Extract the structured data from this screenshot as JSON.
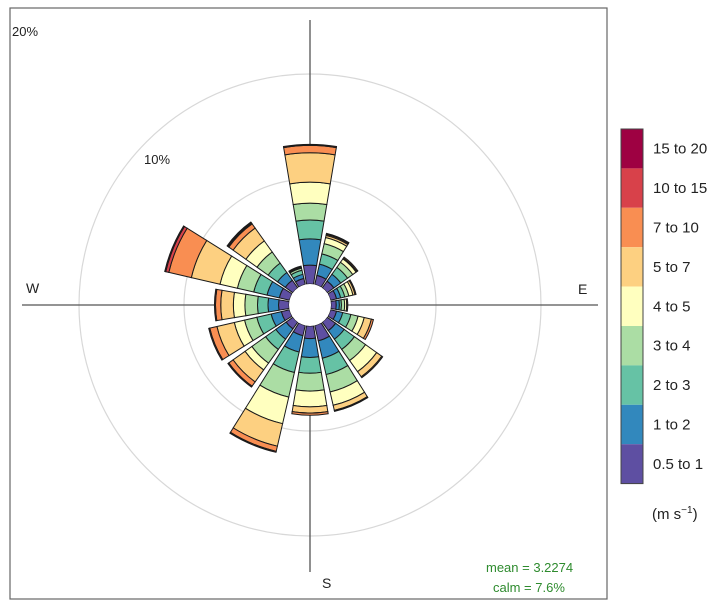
{
  "chart_data": {
    "type": "windrose",
    "title": "",
    "directions": [
      "N",
      "NNE",
      "NE",
      "ENE",
      "E",
      "ESE",
      "SE",
      "SSE",
      "S",
      "SSW",
      "SW",
      "WSW",
      "W",
      "WNW",
      "NW",
      "NNW"
    ],
    "direction_angles_deg": [
      0,
      22.5,
      45,
      67.5,
      90,
      112.5,
      135,
      157.5,
      180,
      202.5,
      225,
      247.5,
      270,
      292.5,
      315,
      337.5
    ],
    "compass_labels": {
      "west": "W",
      "east": "E",
      "south": "S"
    },
    "ring_labels": [
      "10%",
      "20%"
    ],
    "ring_values_percent": [
      10,
      20
    ],
    "radial_max_percent": 20,
    "speed_bins": [
      "0.5 to 1",
      "1 to 2",
      "2 to 3",
      "3 to 4",
      "4 to 5",
      "5 to 7",
      "7 to 10",
      "10 to 15",
      "15 to 20"
    ],
    "bin_colors": [
      "#5e4fa2",
      "#3288bd",
      "#66c2a5",
      "#abdda4",
      "#e6f598",
      "#fee08b",
      "#fdae61",
      "#f46d43",
      "#d53e4f",
      "#9e0142"
    ],
    "legend_colors": [
      "#5e4fa2",
      "#3288bd",
      "#66c2a5",
      "#abdda4",
      "#ffffbf",
      "#fdd081",
      "#f98e52",
      "#d8414a",
      "#9e0142"
    ],
    "series": [
      {
        "direction": "N",
        "cumulative_percent": [
          1.8,
          4.3,
          6.1,
          7.7,
          9.7,
          12.5,
          13.2,
          13.3,
          13.3
        ]
      },
      {
        "direction": "NNE",
        "cumulative_percent": [
          0.9,
          2.0,
          3.0,
          4.0,
          4.6,
          4.8,
          4.9,
          5.0,
          5.0
        ]
      },
      {
        "direction": "NE",
        "cumulative_percent": [
          0.8,
          1.6,
          2.4,
          3.0,
          3.4,
          3.5,
          3.6,
          3.6,
          3.6
        ]
      },
      {
        "direction": "ENE",
        "cumulative_percent": [
          0.6,
          1.0,
          1.4,
          1.8,
          2.2,
          2.4,
          2.5,
          2.5,
          2.5
        ]
      },
      {
        "direction": "E",
        "cumulative_percent": [
          0.5,
          0.8,
          1.0,
          1.3,
          1.5,
          1.6,
          1.6,
          1.6,
          1.6
        ]
      },
      {
        "direction": "ESE",
        "cumulative_percent": [
          0.6,
          1.2,
          2.0,
          2.7,
          3.3,
          4.0,
          4.2,
          4.2,
          4.2
        ]
      },
      {
        "direction": "SE",
        "cumulative_percent": [
          1.0,
          2.0,
          3.2,
          4.5,
          5.8,
          6.4,
          6.5,
          6.5,
          6.5
        ]
      },
      {
        "direction": "SSE",
        "cumulative_percent": [
          1.5,
          3.2,
          4.8,
          6.5,
          7.8,
          8.3,
          8.4,
          8.4,
          8.4
        ]
      },
      {
        "direction": "S",
        "cumulative_percent": [
          1.2,
          3.0,
          4.5,
          6.2,
          7.7,
          8.3,
          8.5,
          8.5,
          8.5
        ]
      },
      {
        "direction": "SSW",
        "cumulative_percent": [
          1.0,
          2.6,
          4.6,
          7.0,
          9.6,
          11.8,
          12.3,
          12.4,
          12.4
        ]
      },
      {
        "direction": "SW",
        "cumulative_percent": [
          0.8,
          2.0,
          3.2,
          4.8,
          5.6,
          7.0,
          7.5,
          7.6,
          7.6
        ]
      },
      {
        "direction": "WSW",
        "cumulative_percent": [
          0.8,
          1.8,
          3.2,
          4.4,
          5.4,
          7.1,
          7.8,
          7.9,
          7.9
        ]
      },
      {
        "direction": "W",
        "cumulative_percent": [
          1.0,
          2.0,
          3.0,
          4.2,
          5.3,
          6.5,
          7.0,
          7.1,
          7.1
        ]
      },
      {
        "direction": "WNW",
        "cumulative_percent": [
          1.0,
          2.2,
          3.5,
          5.1,
          6.8,
          9.6,
          11.8,
          12.1,
          12.2
        ]
      },
      {
        "direction": "NW",
        "cumulative_percent": [
          0.9,
          1.8,
          2.9,
          4.2,
          5.5,
          7.0,
          7.5,
          7.6,
          7.7
        ]
      },
      {
        "direction": "NNW",
        "cumulative_percent": [
          0.6,
          1.0,
          1.4,
          1.6,
          1.7,
          1.8,
          1.8,
          1.8,
          1.8
        ]
      }
    ],
    "units_label": "(m s",
    "units_superscript": "−1",
    "units_close": ")",
    "stats": {
      "mean": "mean = 3.2274",
      "calm": "calm = 7.6%"
    },
    "legend_placement": "right",
    "grid": true
  }
}
